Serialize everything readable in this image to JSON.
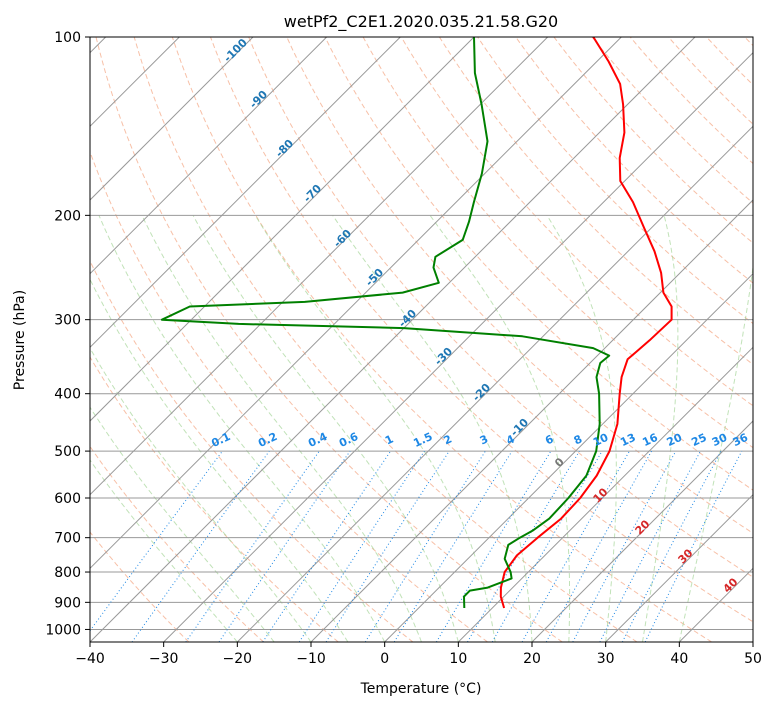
{
  "chart_data": {
    "type": "line",
    "title": "wetPf2_C2E1.2020.035.21.58.G20",
    "xlabel": "Temperature (°C)",
    "ylabel": "Pressure (hPa)",
    "xlim": [
      -40,
      50
    ],
    "ylim_hpa": [
      1050,
      100
    ],
    "x_ticks": [
      -40,
      -30,
      -20,
      -10,
      0,
      10,
      20,
      30,
      40,
      50
    ],
    "x_tick_labels": [
      "−40",
      "−30",
      "−20",
      "−10",
      "0",
      "10",
      "20",
      "30",
      "40",
      "50"
    ],
    "y_ticks": [
      100,
      200,
      300,
      400,
      500,
      600,
      700,
      800,
      900,
      1000
    ],
    "y_tick_labels": [
      "100",
      "200",
      "300",
      "400",
      "500",
      "600",
      "700",
      "800",
      "900",
      "1000"
    ],
    "y_scale": "log",
    "grid": true,
    "isotherm_step_c": 10,
    "series": [
      {
        "color": "#ff0000",
        "points": [
          [
            920,
            11.6
          ],
          [
            880,
            9.6
          ],
          [
            850,
            8.4
          ],
          [
            800,
            6.8
          ],
          [
            750,
            6.2
          ],
          [
            700,
            6.6
          ],
          [
            650,
            7.2
          ],
          [
            600,
            7.0
          ],
          [
            550,
            6.2
          ],
          [
            500,
            4.6
          ],
          [
            450,
            2.0
          ],
          [
            400,
            -1.8
          ],
          [
            375,
            -3.8
          ],
          [
            350,
            -5.4
          ],
          [
            325,
            -5.0
          ],
          [
            300,
            -4.8
          ],
          [
            285,
            -6.6
          ],
          [
            270,
            -9.6
          ],
          [
            250,
            -12.6
          ],
          [
            230,
            -16.4
          ],
          [
            210,
            -21.0
          ],
          [
            190,
            -26.0
          ],
          [
            175,
            -30.6
          ],
          [
            160,
            -33.8
          ],
          [
            145,
            -36.6
          ],
          [
            130,
            -40.6
          ],
          [
            120,
            -43.8
          ],
          [
            110,
            -48.4
          ],
          [
            100,
            -53.8
          ]
        ]
      },
      {
        "color": "#008000",
        "points": [
          [
            920,
            6.2
          ],
          [
            880,
            4.6
          ],
          [
            860,
            4.6
          ],
          [
            850,
            6.6
          ],
          [
            820,
            8.6
          ],
          [
            800,
            7.6
          ],
          [
            760,
            5.0
          ],
          [
            720,
            3.6
          ],
          [
            700,
            4.2
          ],
          [
            680,
            5.0
          ],
          [
            650,
            5.6
          ],
          [
            600,
            5.4
          ],
          [
            550,
            4.8
          ],
          [
            500,
            2.8
          ],
          [
            450,
            -0.4
          ],
          [
            400,
            -4.6
          ],
          [
            375,
            -7.2
          ],
          [
            355,
            -8.6
          ],
          [
            345,
            -8.4
          ],
          [
            335,
            -11.6
          ],
          [
            320,
            -22.8
          ],
          [
            310,
            -40.0
          ],
          [
            305,
            -63.0
          ],
          [
            300,
            -74.0
          ],
          [
            285,
            -72.0
          ],
          [
            280,
            -57.0
          ],
          [
            270,
            -45.0
          ],
          [
            260,
            -41.4
          ],
          [
            245,
            -44.2
          ],
          [
            235,
            -45.4
          ],
          [
            220,
            -44.0
          ],
          [
            205,
            -45.6
          ],
          [
            190,
            -47.6
          ],
          [
            170,
            -50.4
          ],
          [
            150,
            -54.0
          ],
          [
            130,
            -59.8
          ],
          [
            115,
            -65.0
          ],
          [
            100,
            -70.0
          ]
        ]
      }
    ],
    "dry_adiabat_labels": [
      "-100",
      "-90",
      "-80",
      "-70",
      "-60",
      "-50",
      "-40",
      "-30",
      "-20",
      "-10",
      "0",
      "10",
      "20",
      "30",
      "40"
    ],
    "mixing_ratio_labels": [
      "0.1",
      "0.2",
      "0.4",
      "0.6",
      "1",
      "1.5",
      "2",
      "3",
      "4",
      "6",
      "8",
      "10",
      "13",
      "16",
      "20",
      "25",
      "30",
      "36"
    ]
  }
}
